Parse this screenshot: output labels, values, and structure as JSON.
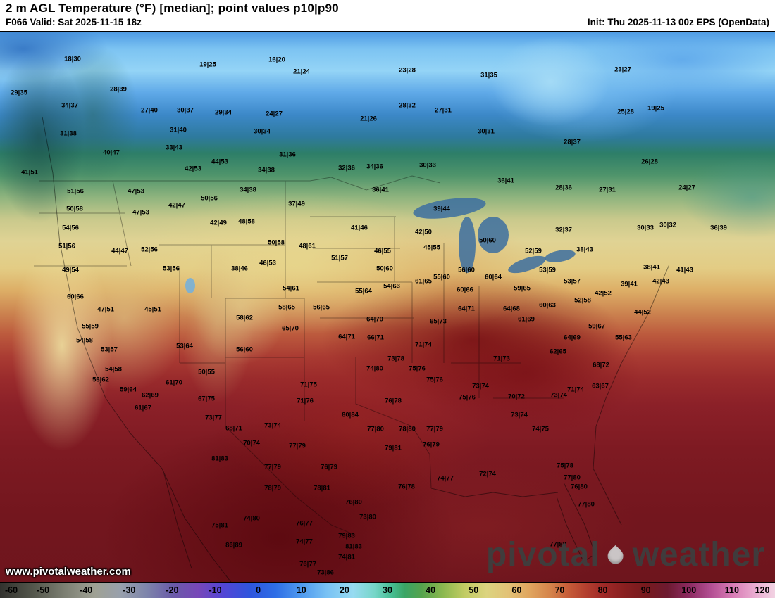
{
  "header": {
    "title": "2 m AGL Temperature (°F) [median]; point values p10|p90",
    "valid": "F066 Valid: Sat 2025-11-15 18z",
    "init": "Init: Thu 2025-11-13 00z EPS (OpenData)"
  },
  "watermark": {
    "url": "www.pivotalweather.com",
    "brand_left": "pivotal",
    "brand_right": "weather"
  },
  "colorbar": {
    "min": -60,
    "max": 120,
    "ticks": [
      -60,
      -50,
      -40,
      -30,
      -20,
      -10,
      0,
      10,
      20,
      30,
      40,
      50,
      60,
      70,
      80,
      90,
      100,
      110,
      120
    ],
    "stops": [
      [
        -60,
        "#32322e"
      ],
      [
        -52,
        "#55584d"
      ],
      [
        -45,
        "#7c7f72"
      ],
      [
        -38,
        "#9fa194"
      ],
      [
        -32,
        "#98a0ac"
      ],
      [
        -26,
        "#7e85ab"
      ],
      [
        -20,
        "#6a5ca8"
      ],
      [
        -14,
        "#7747b8"
      ],
      [
        -8,
        "#5246d6"
      ],
      [
        -2,
        "#2f55dd"
      ],
      [
        4,
        "#2e6ee6"
      ],
      [
        10,
        "#4f9aef"
      ],
      [
        16,
        "#79c2f4"
      ],
      [
        22,
        "#97dbf1"
      ],
      [
        27,
        "#76d6c8"
      ],
      [
        31,
        "#46bd92"
      ],
      [
        34,
        "#3aa565"
      ],
      [
        38,
        "#55a34d"
      ],
      [
        43,
        "#8cb94f"
      ],
      [
        48,
        "#c2cc63"
      ],
      [
        53,
        "#dcd47f"
      ],
      [
        58,
        "#e2c276"
      ],
      [
        63,
        "#e0a55e"
      ],
      [
        68,
        "#d4824a"
      ],
      [
        72,
        "#c65c38"
      ],
      [
        76,
        "#b4402f"
      ],
      [
        80,
        "#a02a28"
      ],
      [
        85,
        "#891f20"
      ],
      [
        90,
        "#771a1e"
      ],
      [
        95,
        "#6d1a30"
      ],
      [
        100,
        "#8c2a60"
      ],
      [
        105,
        "#b24e92"
      ],
      [
        110,
        "#d77ab4"
      ],
      [
        115,
        "#e9a9cf"
      ],
      [
        120,
        "#f2d3e3"
      ]
    ]
  },
  "points": [
    [
      103,
      38,
      "18|30"
    ],
    [
      295,
      46,
      "19|25"
    ],
    [
      393,
      39,
      "16|20"
    ],
    [
      428,
      56,
      "21|24"
    ],
    [
      578,
      54,
      "23|28"
    ],
    [
      694,
      61,
      "31|35"
    ],
    [
      884,
      53,
      "23|27"
    ],
    [
      27,
      86,
      "29|35"
    ],
    [
      168,
      81,
      "28|39"
    ],
    [
      99,
      104,
      "34|37"
    ],
    [
      212,
      111,
      "27|40"
    ],
    [
      263,
      111,
      "30|37"
    ],
    [
      317,
      114,
      "29|34"
    ],
    [
      389,
      116,
      "24|27"
    ],
    [
      523,
      123,
      "21|26"
    ],
    [
      578,
      104,
      "28|32"
    ],
    [
      629,
      111,
      "27|31"
    ],
    [
      888,
      113,
      "25|28"
    ],
    [
      931,
      108,
      "19|25"
    ],
    [
      97,
      144,
      "31|38"
    ],
    [
      253,
      139,
      "31|40"
    ],
    [
      372,
      141,
      "30|34"
    ],
    [
      690,
      141,
      "30|31"
    ],
    [
      812,
      156,
      "28|37"
    ],
    [
      158,
      171,
      "40|47"
    ],
    [
      247,
      164,
      "33|43"
    ],
    [
      408,
      174,
      "31|36"
    ],
    [
      922,
      184,
      "26|28"
    ],
    [
      42,
      199,
      "41|51"
    ],
    [
      274,
      194,
      "42|53"
    ],
    [
      312,
      184,
      "44|53"
    ],
    [
      378,
      196,
      "34|38"
    ],
    [
      492,
      193,
      "32|36"
    ],
    [
      532,
      191,
      "34|36"
    ],
    [
      607,
      189,
      "30|33"
    ],
    [
      975,
      221,
      "24|27"
    ],
    [
      718,
      211,
      "36|41"
    ],
    [
      800,
      221,
      "28|36"
    ],
    [
      107,
      226,
      "51|56"
    ],
    [
      193,
      226,
      "47|53"
    ],
    [
      352,
      224,
      "34|38"
    ],
    [
      540,
      224,
      "36|41"
    ],
    [
      862,
      224,
      "27|31"
    ],
    [
      297,
      236,
      "50|56"
    ],
    [
      421,
      244,
      "37|49"
    ],
    [
      627,
      251,
      "39|44"
    ],
    [
      106,
      251,
      "50|58"
    ],
    [
      200,
      256,
      "47|53"
    ],
    [
      251,
      246,
      "42|47"
    ],
    [
      310,
      271,
      "42|49"
    ],
    [
      350,
      269,
      "48|58"
    ],
    [
      601,
      284,
      "42|50"
    ],
    [
      800,
      281,
      "32|37"
    ],
    [
      916,
      278,
      "30|33"
    ],
    [
      948,
      274,
      "30|32"
    ],
    [
      1020,
      278,
      "36|39"
    ],
    [
      100,
      278,
      "54|56"
    ],
    [
      830,
      309,
      "38|43"
    ],
    [
      95,
      304,
      "51|56"
    ],
    [
      170,
      311,
      "44|47"
    ],
    [
      212,
      309,
      "52|56"
    ],
    [
      392,
      299,
      "50|58"
    ],
    [
      436,
      304,
      "48|61"
    ],
    [
      510,
      278,
      "41|46"
    ],
    [
      613,
      306,
      "45|55"
    ],
    [
      692,
      296,
      "50|60"
    ],
    [
      757,
      311,
      "52|59"
    ],
    [
      543,
      311,
      "46|55"
    ],
    [
      925,
      334,
      "38|41"
    ],
    [
      972,
      338,
      "41|43"
    ],
    [
      893,
      358,
      "39|41"
    ],
    [
      938,
      354,
      "42|43"
    ],
    [
      912,
      398,
      "44|52"
    ],
    [
      856,
      371,
      "42|52"
    ],
    [
      243,
      336,
      "53|56"
    ],
    [
      340,
      336,
      "38|46"
    ],
    [
      380,
      328,
      "46|53"
    ],
    [
      482,
      321,
      "51|57"
    ],
    [
      546,
      336,
      "50|60"
    ],
    [
      627,
      348,
      "55|60"
    ],
    [
      662,
      338,
      "56|60"
    ],
    [
      700,
      348,
      "60|64"
    ],
    [
      777,
      338,
      "53|59"
    ],
    [
      100,
      338,
      "49|54"
    ],
    [
      413,
      364,
      "54|61"
    ],
    [
      516,
      368,
      "55|64"
    ],
    [
      556,
      361,
      "54|63"
    ],
    [
      601,
      354,
      "61|65"
    ],
    [
      660,
      366,
      "60|66"
    ],
    [
      741,
      364,
      "59|65"
    ],
    [
      812,
      354,
      "53|57"
    ],
    [
      107,
      376,
      "60|66"
    ],
    [
      150,
      394,
      "47|51"
    ],
    [
      217,
      394,
      "45|51"
    ],
    [
      407,
      391,
      "58|65"
    ],
    [
      456,
      391,
      "56|65"
    ],
    [
      662,
      393,
      "64|71"
    ],
    [
      726,
      393,
      "64|68"
    ],
    [
      777,
      388,
      "60|63"
    ],
    [
      827,
      381,
      "52|58"
    ],
    [
      128,
      418,
      "55|59"
    ],
    [
      347,
      406,
      "58|62"
    ],
    [
      532,
      408,
      "64|70"
    ],
    [
      622,
      411,
      "65|73"
    ],
    [
      747,
      408,
      "61|69"
    ],
    [
      847,
      418,
      "59|67"
    ],
    [
      412,
      421,
      "65|70"
    ],
    [
      120,
      438,
      "54|58"
    ],
    [
      492,
      433,
      "64|71"
    ],
    [
      533,
      434,
      "66|71"
    ],
    [
      601,
      444,
      "71|74"
    ],
    [
      155,
      451,
      "53|57"
    ],
    [
      262,
      446,
      "53|64"
    ],
    [
      347,
      451,
      "56|60"
    ],
    [
      792,
      454,
      "62|65"
    ],
    [
      812,
      434,
      "64|69"
    ],
    [
      885,
      434,
      "55|63"
    ],
    [
      562,
      464,
      "73|78"
    ],
    [
      712,
      464,
      "71|73"
    ],
    [
      853,
      473,
      "68|72"
    ],
    [
      161,
      479,
      "54|58"
    ],
    [
      293,
      483,
      "50|55"
    ],
    [
      532,
      478,
      "74|80"
    ],
    [
      592,
      478,
      "75|76"
    ],
    [
      682,
      503,
      "73|74"
    ],
    [
      852,
      503,
      "63|67"
    ],
    [
      817,
      508,
      "71|74"
    ],
    [
      143,
      494,
      "56|62"
    ],
    [
      247,
      498,
      "61|70"
    ],
    [
      438,
      501,
      "71|75"
    ],
    [
      617,
      494,
      "75|76"
    ],
    [
      182,
      508,
      "59|64"
    ],
    [
      213,
      516,
      "62|69"
    ],
    [
      293,
      521,
      "67|75"
    ],
    [
      433,
      524,
      "71|76"
    ],
    [
      558,
      524,
      "76|78"
    ],
    [
      663,
      519,
      "75|76"
    ],
    [
      733,
      518,
      "70|72"
    ],
    [
      793,
      516,
      "73|74"
    ],
    [
      203,
      534,
      "61|67"
    ],
    [
      497,
      544,
      "80|84"
    ],
    [
      303,
      548,
      "73|77"
    ],
    [
      737,
      544,
      "73|74"
    ],
    [
      332,
      563,
      "68|71"
    ],
    [
      387,
      559,
      "73|74"
    ],
    [
      533,
      564,
      "77|80"
    ],
    [
      578,
      564,
      "78|80"
    ],
    [
      617,
      564,
      "77|79"
    ],
    [
      767,
      564,
      "74|75"
    ],
    [
      357,
      584,
      "70|74"
    ],
    [
      422,
      588,
      "77|79"
    ],
    [
      558,
      591,
      "79|81"
    ],
    [
      612,
      586,
      "76|79"
    ],
    [
      312,
      606,
      "81|83"
    ],
    [
      387,
      618,
      "77|79"
    ],
    [
      467,
      618,
      "76|79"
    ],
    [
      802,
      616,
      "75|78"
    ],
    [
      692,
      628,
      "72|74"
    ],
    [
      632,
      634,
      "74|77"
    ],
    [
      577,
      646,
      "76|78"
    ],
    [
      812,
      633,
      "77|80"
    ],
    [
      387,
      648,
      "78|79"
    ],
    [
      457,
      648,
      "78|81"
    ],
    [
      822,
      646,
      "76|80"
    ],
    [
      502,
      668,
      "76|80"
    ],
    [
      832,
      671,
      "77|80"
    ],
    [
      522,
      689,
      "73|80"
    ],
    [
      357,
      691,
      "74|80"
    ],
    [
      432,
      698,
      "76|77"
    ],
    [
      312,
      701,
      "75|81"
    ],
    [
      492,
      716,
      "79|83"
    ],
    [
      332,
      729,
      "86|89"
    ],
    [
      432,
      724,
      "74|77"
    ],
    [
      792,
      728,
      "77|80"
    ],
    [
      502,
      731,
      "81|83"
    ],
    [
      437,
      756,
      "76|77"
    ],
    [
      492,
      746,
      "74|81"
    ],
    [
      462,
      768,
      "73|86"
    ]
  ]
}
